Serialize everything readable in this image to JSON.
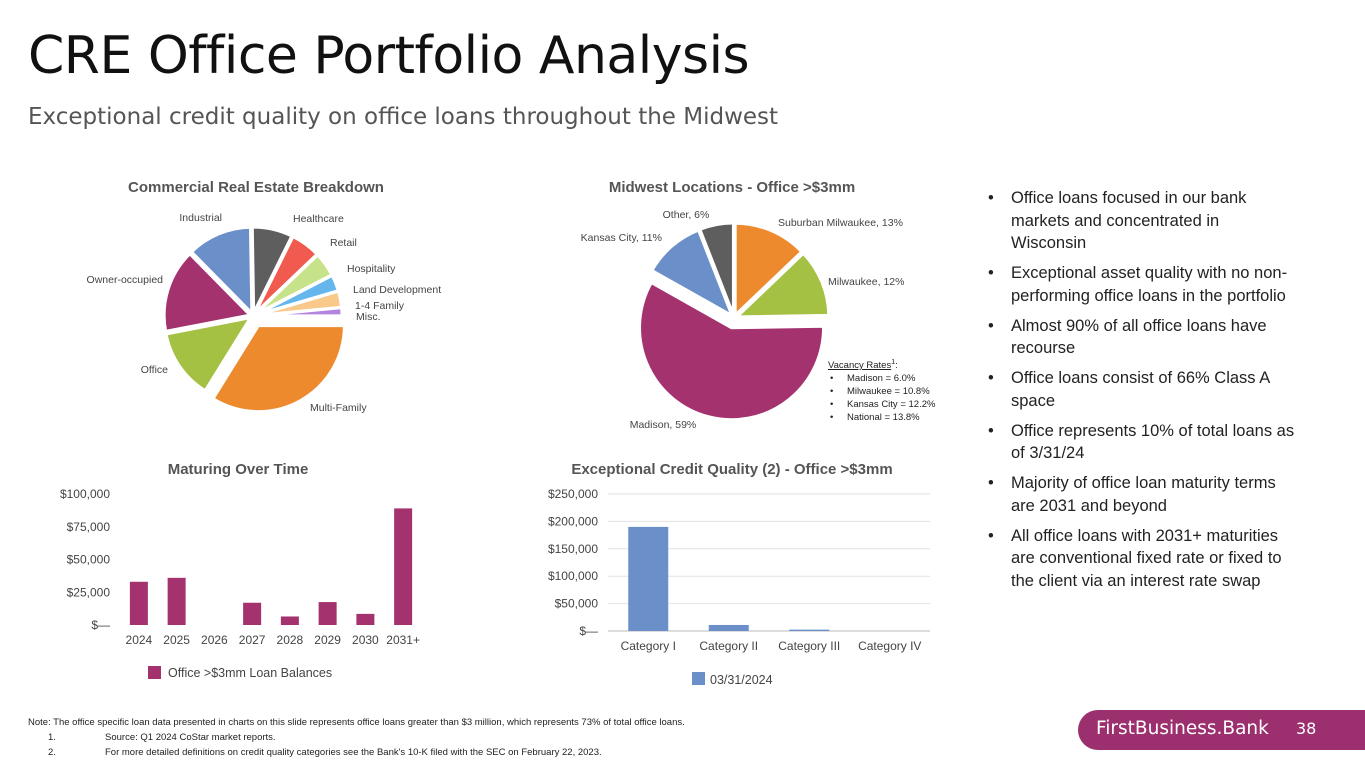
{
  "slide": {
    "title": "CRE Office Portfolio Analysis",
    "subtitle": "Exceptional credit quality on office loans throughout the Midwest",
    "page_number": "38",
    "brand": "FirstBusiness.Bank"
  },
  "vacancy": {
    "heading": "Vacancy Rates",
    "superscript": "1",
    "suffix": ":",
    "items": [
      "Madison = 6.0%",
      "Milwaukee = 10.8%",
      "Kansas City = 12.2%",
      "National = 13.8%"
    ]
  },
  "bullets": [
    "Office loans focused in our bank markets and concentrated in Wisconsin",
    "Exceptional asset quality with no non-performing office loans in the portfolio",
    "Almost 90% of all office loans have recourse",
    "Office loans consist of 66% Class A space",
    "Office represents 10% of total loans as of 3/31/24",
    "Majority of office loan maturity terms are 2031 and beyond",
    "All office loans with 2031+ maturities are conventional fixed rate or fixed to the client via an interest rate swap"
  ],
  "footnotes": {
    "note": "Note: The office specific loan data presented in charts on this slide represents office loans greater than $3 million, which represents 73% of total office loans.",
    "items": [
      {
        "num": "1.",
        "text": "Source: Q1 2024 CoStar market reports."
      },
      {
        "num": "2.",
        "text": "For more detailed definitions on credit quality categories see the Bank's 10-K filed with the SEC on February 22, 2023."
      }
    ]
  },
  "chart_data": [
    {
      "type": "pie",
      "title": "Commercial Real Estate Breakdown",
      "slices": [
        {
          "label": "Multi-Family",
          "value": 33.5,
          "color": "#ed8a2e",
          "exploded": true
        },
        {
          "label": "Office",
          "value": 13,
          "color": "#a4c143"
        },
        {
          "label": "Owner-occupied",
          "value": 15.5,
          "color": "#a3326f"
        },
        {
          "label": "Industrial",
          "value": 12,
          "color": "#6a8fc9"
        },
        {
          "label": "Healthcare",
          "value": 7.5,
          "color": "#5e5e5e"
        },
        {
          "label": "Retail",
          "value": 5.5,
          "color": "#f15a4e"
        },
        {
          "label": "Hospitality",
          "value": 4.5,
          "color": "#c7e389"
        },
        {
          "label": "Land Development",
          "value": 3,
          "color": "#64b6ec"
        },
        {
          "label": "1-4 Family",
          "value": 3,
          "color": "#f8c98a"
        },
        {
          "label": "Misc.",
          "value": 1.5,
          "color": "#b384df"
        }
      ]
    },
    {
      "type": "pie",
      "title": "Midwest Locations - Office >$3mm",
      "slices": [
        {
          "label": "Suburban Milwaukee, 13%",
          "value": 13,
          "color": "#ed8a2e"
        },
        {
          "label": "Milwaukee, 12%",
          "value": 12,
          "color": "#a4c143"
        },
        {
          "label": "Madison, 59%",
          "value": 59,
          "color": "#a3326f",
          "exploded": true
        },
        {
          "label": "Kansas City, 11%",
          "value": 11,
          "color": "#6a8fc9"
        },
        {
          "label": "Other, 6%",
          "value": 6,
          "color": "#5e5e5e"
        }
      ]
    },
    {
      "type": "bar",
      "title": "Maturing Over Time",
      "categories": [
        "2024",
        "2025",
        "2026",
        "2027",
        "2028",
        "2029",
        "2030",
        "2031+"
      ],
      "series": [
        {
          "name": "Office >$3mm Loan Balances",
          "values": [
            33000,
            36000,
            0,
            17000,
            6500,
            17500,
            8500,
            89000
          ],
          "color": "#a3326f"
        }
      ],
      "ylim": [
        0,
        100000
      ],
      "yticks": [
        0,
        25000,
        50000,
        75000,
        100000
      ],
      "ytick_labels": [
        "$—",
        "$25,000",
        "$50,000",
        "$75,000",
        "$100,000"
      ],
      "grid": false,
      "legend": "bottom"
    },
    {
      "type": "bar",
      "title": "Exceptional Credit Quality (2) - Office >$3mm",
      "categories": [
        "Category I",
        "Category II",
        "Category III",
        "Category IV"
      ],
      "series": [
        {
          "name": "03/31/2024",
          "values": [
            190000,
            11000,
            2500,
            0
          ],
          "color": "#6a8fc9"
        }
      ],
      "ylim": [
        0,
        250000
      ],
      "yticks": [
        0,
        50000,
        100000,
        150000,
        200000,
        250000
      ],
      "ytick_labels": [
        "$—",
        "$50,000",
        "$100,000",
        "$150,000",
        "$200,000",
        "$250,000"
      ],
      "grid": true,
      "legend": "bottom"
    }
  ]
}
